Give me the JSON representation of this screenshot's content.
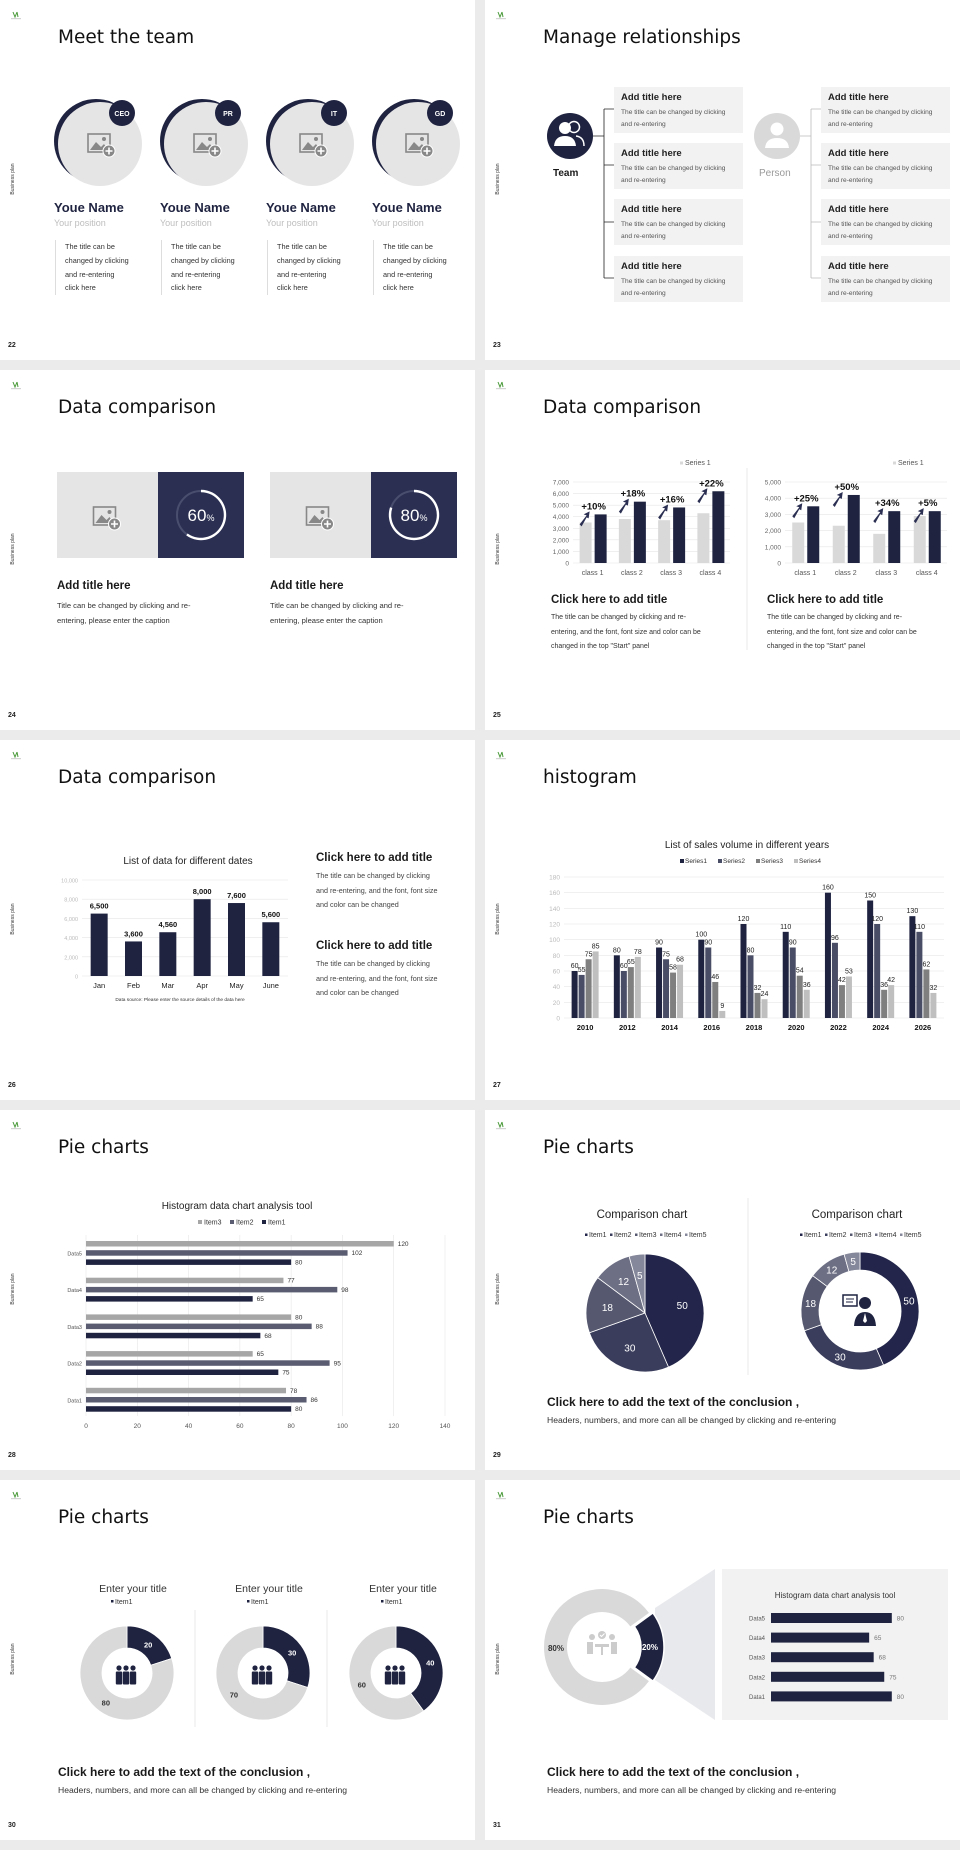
{
  "deck": {
    "footer_label": "Business plan"
  },
  "colors": {
    "navy": "#1f2340",
    "light_gray": "#d9d9d9",
    "panel_gray": "#f2f2f2",
    "mid_gray": "#7f7f7f"
  },
  "s22": {
    "number": "22",
    "title": "Meet the team",
    "members": [
      {
        "badge": "CEO",
        "name": "Youe Name",
        "position": "Your position",
        "desc": "The title can be\nchanged by clicking\nand re-entering\nclick here"
      },
      {
        "badge": "PR",
        "name": "Youe Name",
        "position": "Your position",
        "desc": "The title can be\nchanged by clicking\nand re-entering\nclick here"
      },
      {
        "badge": "IT",
        "name": "Youe Name",
        "position": "Your position",
        "desc": "The title can be\nchanged by clicking\nand re-entering\nclick here"
      },
      {
        "badge": "GD",
        "name": "Youe Name",
        "position": "Your position",
        "desc": "The title can be\nchanged by clicking\nand re-entering\nclick here"
      }
    ]
  },
  "s23": {
    "number": "23",
    "title": "Manage relationships",
    "team_label": "Team",
    "person_label": "Person",
    "left_items": [
      {
        "title": "Add title here",
        "desc": "The title can be changed by clicking\nand re-entering"
      },
      {
        "title": "Add title here",
        "desc": "The title can be changed by clicking\nand re-entering"
      },
      {
        "title": "Add title here",
        "desc": "The title can be changed by clicking\nand re-entering"
      },
      {
        "title": "Add title here",
        "desc": "The title can be changed by clicking\nand re-entering"
      }
    ],
    "right_items": [
      {
        "title": "Add title here",
        "desc": "The title can be changed by clicking\nand re-entering"
      },
      {
        "title": "Add title here",
        "desc": "The title can be changed by clicking\nand re-entering"
      },
      {
        "title": "Add title here",
        "desc": "The title can be changed by clicking\nand re-entering"
      },
      {
        "title": "Add title here",
        "desc": "The title can be changed by clicking\nand re-entering"
      }
    ]
  },
  "s24": {
    "number": "24",
    "title": "Data comparison",
    "cards": [
      {
        "percent": 60,
        "percent_label": "60",
        "unit": "%",
        "title": "Add title here",
        "desc": "Title can be changed by clicking and re-\nentering, please enter the caption"
      },
      {
        "percent": 80,
        "percent_label": "80",
        "unit": "%",
        "title": "Add title here",
        "desc": "Title can be changed by clicking and re-\nentering, please enter the caption"
      }
    ]
  },
  "s25": {
    "number": "25",
    "title": "Data comparison",
    "blocks": [
      {
        "title": "Click here to add title",
        "desc": "The title can be changed by clicking and re-\nentering, and the font, font size and color can be\nchanged in the top \"Start\" panel"
      },
      {
        "title": "Click here to add title",
        "desc": "The title can be changed by clicking and re-\nentering, and the font, font size and color can be\nchanged in the top \"Start\" panel"
      }
    ]
  },
  "s26": {
    "number": "26",
    "title": "Data comparison",
    "blocks": [
      {
        "title": "Click here to add title",
        "desc": "The title can be changed by clicking\nand re-entering, and the font, font size\nand color can be changed"
      },
      {
        "title": "Click here to add title",
        "desc": "The title can be changed by clicking\nand re-entering, and the font, font size\nand color can be changed"
      }
    ]
  },
  "s27": {
    "number": "27",
    "title": "histogram"
  },
  "s28": {
    "number": "28",
    "title": "Pie charts"
  },
  "s29": {
    "number": "29",
    "title": "Pie charts",
    "conclusion_title": "Click here to add the text of the conclusion ,",
    "conclusion_text": "Headers, numbers, and more can all be changed by clicking and re-entering"
  },
  "s30": {
    "number": "30",
    "title": "Pie charts",
    "conclusion_title": "Click here to add the text of the conclusion ,",
    "conclusion_text": "Headers, numbers, and more can all be changed by clicking and re-entering"
  },
  "s31": {
    "number": "31",
    "title": "Pie charts",
    "conclusion_title": "Click here to add the text of the conclusion ,",
    "conclusion_text": "Headers, numbers, and more can all be changed by clicking and re-entering"
  },
  "chart_data": [
    {
      "type": "bar",
      "categories": [
        "class 1",
        "class 2",
        "class 3",
        "class 4"
      ],
      "series": [
        {
          "name": "Series 1",
          "values": [
            3500,
            3800,
            3700,
            4300
          ],
          "color": "#d9d9d9"
        },
        {
          "values": [
            4200,
            5300,
            4800,
            6200
          ],
          "color": "#1f2340"
        }
      ],
      "ylim": [
        0,
        7000
      ],
      "ytick_labels": [
        "0",
        "1,000",
        "2,000",
        "3,000",
        "4,000",
        "5,000",
        "6,000",
        "7,000"
      ],
      "annotations": [
        "+10%",
        "+18%",
        "+16%",
        "+22%"
      ],
      "legend": "top-right",
      "grid": true
    },
    {
      "type": "bar",
      "categories": [
        "class 1",
        "class 2",
        "class 3",
        "class 4"
      ],
      "series": [
        {
          "name": "Series 1",
          "values": [
            2500,
            2300,
            1800,
            2900
          ],
          "color": "#d9d9d9"
        },
        {
          "values": [
            3500,
            4200,
            3200,
            3200
          ],
          "color": "#1f2340"
        }
      ],
      "ylim": [
        0,
        5000
      ],
      "ytick_labels": [
        "0",
        "1,000",
        "2,000",
        "3,000",
        "4,000",
        "5,000"
      ],
      "annotations": [
        "+25%",
        "+50%",
        "+34%",
        "+5%"
      ],
      "legend": "top-right",
      "grid": true
    },
    {
      "type": "bar",
      "title": "List of data for different dates",
      "categories": [
        "Jan",
        "Feb",
        "Mar",
        "Apr",
        "May",
        "June"
      ],
      "values": [
        6500,
        3600,
        4560,
        8000,
        7600,
        5600
      ],
      "data_labels": [
        "6,500",
        "3,600",
        "4,560",
        "8,000",
        "7,600",
        "5,600"
      ],
      "ylim": [
        0,
        10000
      ],
      "ytick_labels": [
        "0",
        "2,000",
        "4,000",
        "6,000",
        "8,000",
        "10,000"
      ],
      "source_note": "Data source: Please enter the source details of the data here",
      "grid": true
    },
    {
      "type": "bar",
      "title": "List of sales volume in different years",
      "categories": [
        "2010",
        "2012",
        "2014",
        "2016",
        "2018",
        "2020",
        "2022",
        "2024",
        "2026"
      ],
      "series": [
        {
          "name": "Series1",
          "values": [
            60,
            80,
            90,
            100,
            120,
            110,
            160,
            150,
            130
          ],
          "color": "#1f2340"
        },
        {
          "name": "Series2",
          "values": [
            55,
            60,
            75,
            90,
            80,
            90,
            96,
            120,
            110
          ],
          "color": "#4a4d66"
        },
        {
          "name": "Series3",
          "values": [
            75,
            65,
            58,
            46,
            32,
            54,
            42,
            36,
            62
          ],
          "color": "#7f7f7f"
        },
        {
          "name": "Series4",
          "values": [
            85,
            78,
            68,
            9,
            24,
            36,
            53,
            42,
            32
          ],
          "color": "#bfbfbf"
        }
      ],
      "ylim": [
        0,
        180
      ],
      "ytick_labels": [
        "0",
        "20",
        "40",
        "60",
        "80",
        "100",
        "120",
        "140",
        "160",
        "180"
      ],
      "legend": "top",
      "grid": true
    },
    {
      "type": "bar",
      "orientation": "horizontal",
      "title": "Histogram data chart analysis tool",
      "categories": [
        "Data1",
        "Data2",
        "Data3",
        "Data4",
        "Data5"
      ],
      "series": [
        {
          "name": "Item1",
          "values": [
            80,
            75,
            68,
            65,
            80
          ],
          "color": "#1f2340"
        },
        {
          "name": "Item2",
          "values": [
            86,
            95,
            88,
            98,
            102
          ],
          "color": "#5a5c72"
        },
        {
          "name": "Item3",
          "values": [
            78,
            65,
            80,
            77,
            120
          ],
          "color": "#a6a6a6"
        }
      ],
      "xlim": [
        0,
        140
      ],
      "xtick_labels": [
        "0",
        "20",
        "40",
        "60",
        "80",
        "100",
        "120",
        "140"
      ],
      "legend": "top",
      "grid": true
    },
    {
      "type": "pie",
      "title": "Comparison chart",
      "categories": [
        "Item1",
        "Item2",
        "Item3",
        "Item4",
        "Item5"
      ],
      "values": [
        50,
        30,
        18,
        12,
        5
      ],
      "colors": [
        "#23264a",
        "#3a3d5c",
        "#55586f",
        "#6d6f85",
        "#85879a"
      ],
      "legend": "top"
    },
    {
      "type": "pie",
      "variant": "donut",
      "title": "Comparison chart",
      "categories": [
        "Item1",
        "Item2",
        "Item3",
        "Item4",
        "Item5"
      ],
      "values": [
        50,
        30,
        18,
        12,
        5
      ],
      "colors": [
        "#23264a",
        "#3a3d5c",
        "#55586f",
        "#6d6f85",
        "#85879a"
      ],
      "legend": "top",
      "center_icon": "support-agent-icon"
    },
    {
      "type": "pie",
      "variant": "donut",
      "title": "Enter your title",
      "legend_label": "Item1",
      "values": [
        20,
        80
      ],
      "colors": [
        "#1f2340",
        "#d9d9d9"
      ],
      "center_icon": "team-icon"
    },
    {
      "type": "pie",
      "variant": "donut",
      "title": "Enter your title",
      "legend_label": "Item1",
      "values": [
        30,
        70
      ],
      "colors": [
        "#1f2340",
        "#d9d9d9"
      ],
      "center_icon": "team-icon"
    },
    {
      "type": "pie",
      "variant": "donut",
      "title": "Enter your title",
      "legend_label": "Item1",
      "values": [
        40,
        60
      ],
      "colors": [
        "#1f2340",
        "#d9d9d9"
      ],
      "center_icon": "team-icon"
    },
    {
      "type": "pie",
      "variant": "donut",
      "values": [
        20,
        80
      ],
      "data_labels": [
        "20%",
        "80%"
      ],
      "colors": [
        "#1f2340",
        "#d9d9d9"
      ],
      "center_icon": "meeting-icon"
    },
    {
      "type": "bar",
      "orientation": "horizontal",
      "title": "Histogram data chart analysis tool",
      "categories": [
        "Data5",
        "Data4",
        "Data3",
        "Data2",
        "Data1"
      ],
      "values": [
        80,
        65,
        68,
        75,
        80
      ],
      "color": "#1f2340"
    }
  ]
}
